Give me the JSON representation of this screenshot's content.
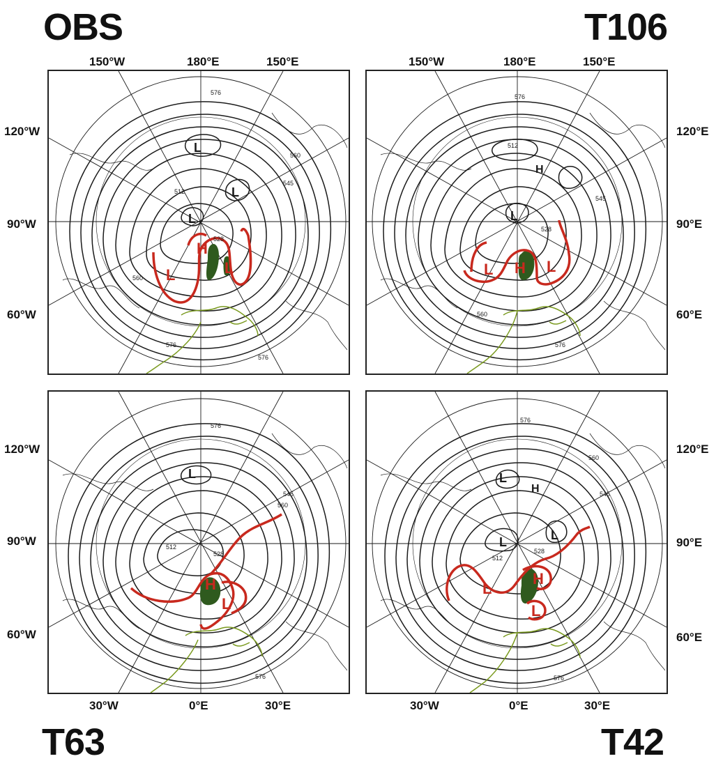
{
  "panels": {
    "obs": {
      "title": "OBS",
      "top_labels": [
        "150°W",
        "180°E",
        "150°E"
      ],
      "left_labels": [
        "120°W",
        "90°W",
        "60°W"
      ],
      "contour_labels": [
        "576",
        "512",
        "528",
        "560",
        "576",
        "545",
        "560",
        "576"
      ]
    },
    "t106": {
      "title": "T106",
      "top_labels": [
        "150°W",
        "180°E",
        "150°E"
      ],
      "right_labels": [
        "120°E",
        "90°E",
        "60°E"
      ],
      "contour_labels": [
        "576",
        "512",
        "528",
        "545",
        "560",
        "576"
      ]
    },
    "t63": {
      "title": "T63",
      "left_labels": [
        "120°W",
        "90°W",
        "60°W"
      ],
      "bottom_labels": [
        "30°W",
        "0°E",
        "30°E"
      ],
      "contour_labels": [
        "576",
        "512",
        "528",
        "560",
        "545",
        "576"
      ]
    },
    "t42": {
      "title": "T42",
      "right_labels": [
        "120°E",
        "90°E",
        "60°E"
      ],
      "bottom_labels": [
        "30°W",
        "0°E",
        "30°E"
      ],
      "contour_labels": [
        "576",
        "512",
        "528",
        "560",
        "545",
        "576"
      ]
    }
  },
  "markers": {
    "high": "H",
    "low": "L"
  },
  "colors": {
    "red_contour": "#c8291e",
    "green_region": "#2f5a1e",
    "coast_green": "#7a9a1e",
    "contour": "#1a1a1a"
  }
}
